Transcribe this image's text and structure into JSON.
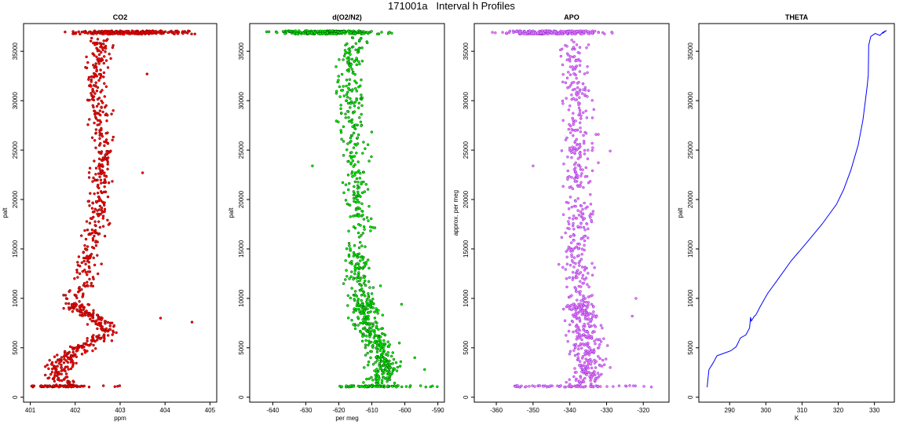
{
  "figure_title": "171001a   Interval h Profiles",
  "chart_data": [
    {
      "type": "scatter",
      "title": "CO2",
      "xlabel": "ppm",
      "ylabel": "palt",
      "xlim": [
        400.85,
        405.15
      ],
      "ylim": [
        -500,
        37800
      ],
      "xticks": [
        401,
        402,
        403,
        404,
        405
      ],
      "xtick_labels": [
        "401",
        "402",
        "403",
        "404",
        "405"
      ],
      "yticks": [
        0,
        5000,
        10000,
        15000,
        20000,
        25000,
        30000,
        35000
      ],
      "ytick_labels": [
        "0",
        "5000",
        "10000",
        "15000",
        "20000",
        "25000",
        "30000",
        "35000"
      ],
      "color": "#ff0000",
      "outline": "#7a0000",
      "profile": [
        [
          0,
          401.6
        ],
        [
          1100,
          401.9
        ],
        [
          2000,
          401.6
        ],
        [
          3000,
          401.6
        ],
        [
          4000,
          401.8
        ],
        [
          5000,
          402.1
        ],
        [
          5500,
          402.4
        ],
        [
          6000,
          402.5
        ],
        [
          7000,
          402.7
        ],
        [
          8000,
          402.5
        ],
        [
          9000,
          402.0
        ],
        [
          10000,
          402.0
        ],
        [
          12000,
          402.2
        ],
        [
          15000,
          402.3
        ],
        [
          18000,
          402.5
        ],
        [
          20000,
          402.5
        ],
        [
          23000,
          402.6
        ],
        [
          25000,
          402.6
        ],
        [
          28000,
          402.6
        ],
        [
          30000,
          402.5
        ],
        [
          33000,
          402.5
        ],
        [
          35000,
          402.6
        ],
        [
          36300,
          402.5
        ]
      ],
      "top_band": {
        "alt": 36900,
        "min": 401.5,
        "max": 405.0
      },
      "bottom_band": {
        "alt": 1100,
        "min": 401.0,
        "max": 403.0
      },
      "spread": 0.25,
      "outliers": [
        [
          7600,
          404.6
        ],
        [
          8000,
          403.9
        ],
        [
          32700,
          403.6
        ],
        [
          22700,
          403.5
        ]
      ]
    },
    {
      "type": "scatter",
      "title": "d(O2/N2)",
      "xlabel": "per meg",
      "ylabel": "palt",
      "xlim": [
        -647,
        -588
      ],
      "ylim": [
        -500,
        37800
      ],
      "xticks": [
        -640,
        -630,
        -620,
        -610,
        -600,
        -590
      ],
      "xtick_labels": [
        "-640",
        "-630",
        "-620",
        "-610",
        "-600",
        "-590"
      ],
      "yticks": [
        0,
        5000,
        10000,
        15000,
        20000,
        25000,
        30000,
        35000
      ],
      "ytick_labels": [
        "0",
        "5000",
        "10000",
        "15000",
        "20000",
        "25000",
        "30000",
        "35000"
      ],
      "color": "#00ee00",
      "outline": "#005500",
      "profile": [
        [
          0,
          -607
        ],
        [
          2000,
          -608
        ],
        [
          3000,
          -606
        ],
        [
          5000,
          -608
        ],
        [
          6000,
          -609
        ],
        [
          7000,
          -612
        ],
        [
          8000,
          -613
        ],
        [
          9000,
          -612
        ],
        [
          10000,
          -612
        ],
        [
          12000,
          -614
        ],
        [
          15000,
          -614
        ],
        [
          18000,
          -613
        ],
        [
          20000,
          -614
        ],
        [
          22000,
          -615
        ],
        [
          25000,
          -615
        ],
        [
          28000,
          -616
        ],
        [
          30000,
          -616
        ],
        [
          33000,
          -617
        ],
        [
          35000,
          -616
        ],
        [
          36300,
          -614
        ]
      ],
      "top_band": {
        "alt": 36900,
        "min": -645,
        "max": -600
      },
      "bottom_band": {
        "alt": 1100,
        "min": -620,
        "max": -590
      },
      "spread": 4.0,
      "outliers": [
        [
          23400,
          -628
        ],
        [
          2800,
          -594
        ],
        [
          9400,
          -601
        ],
        [
          4000,
          -597
        ]
      ]
    },
    {
      "type": "scatter",
      "title": "APO",
      "xlabel": "",
      "ylabel": "approx. per meg",
      "xlim": [
        -366,
        -313
      ],
      "ylim": [
        -500,
        37800
      ],
      "xticks": [
        -360,
        -350,
        -340,
        -330,
        -320
      ],
      "xtick_labels": [
        "-360",
        "-350",
        "-340",
        "-330",
        "-320"
      ],
      "yticks": [
        0,
        5000,
        10000,
        15000,
        20000,
        25000,
        30000,
        35000
      ],
      "ytick_labels": [
        "0",
        "5000",
        "10000",
        "15000",
        "20000",
        "25000",
        "30000",
        "35000"
      ],
      "color": "#ee82ee",
      "outline": "#8a2be2",
      "profile": [
        [
          0,
          -337
        ],
        [
          3000,
          -335
        ],
        [
          6000,
          -336
        ],
        [
          8000,
          -336
        ],
        [
          10000,
          -337
        ],
        [
          15000,
          -338
        ],
        [
          20000,
          -337
        ],
        [
          25000,
          -338
        ],
        [
          30000,
          -338
        ],
        [
          35000,
          -339
        ],
        [
          36300,
          -340
        ]
      ],
      "top_band": {
        "alt": 36900,
        "min": -363,
        "max": -326
      },
      "bottom_band": {
        "alt": 1100,
        "min": -355,
        "max": -317
      },
      "spread": 4.0,
      "outliers": [
        [
          23400,
          -350
        ],
        [
          8200,
          -323
        ],
        [
          10000,
          -322
        ],
        [
          24900,
          -329
        ]
      ]
    },
    {
      "type": "line",
      "title": "THETA",
      "xlabel": "K",
      "ylabel": "palt",
      "xlim": [
        281.5,
        335.5
      ],
      "ylim": [
        -500,
        37800
      ],
      "xticks": [
        290,
        300,
        310,
        320,
        330
      ],
      "xtick_labels": [
        "290",
        "300",
        "310",
        "320",
        "330"
      ],
      "yticks": [
        0,
        5000,
        10000,
        15000,
        20000,
        25000,
        30000,
        35000
      ],
      "ytick_labels": [
        "0",
        "5000",
        "10000",
        "15000",
        "20000",
        "25000",
        "30000",
        "35000"
      ],
      "color": "#0000ff",
      "x": [
        283.8,
        284.0,
        284.3,
        285.5,
        286.5,
        288.8,
        290.3,
        291.8,
        293.0,
        294.5,
        295.5,
        295.8,
        296.0,
        296.8,
        297.2,
        298.5,
        300.5,
        303.5,
        307.0,
        311.0,
        315.5,
        319.5,
        321.5,
        323.5,
        325.5,
        326.8,
        327.5,
        328.0,
        328.3,
        328.4,
        329.0,
        330.2,
        331.5,
        332.3,
        333.3,
        332.2
      ],
      "y": [
        1000,
        1800,
        2800,
        3500,
        4200,
        4500,
        4700,
        5100,
        6000,
        6300,
        7000,
        8100,
        7700,
        8200,
        8300,
        9200,
        10500,
        12000,
        13800,
        15500,
        17500,
        19500,
        21000,
        23000,
        25500,
        28000,
        30000,
        31500,
        32600,
        35600,
        36500,
        36800,
        36600,
        36900,
        37100,
        36800
      ]
    }
  ]
}
